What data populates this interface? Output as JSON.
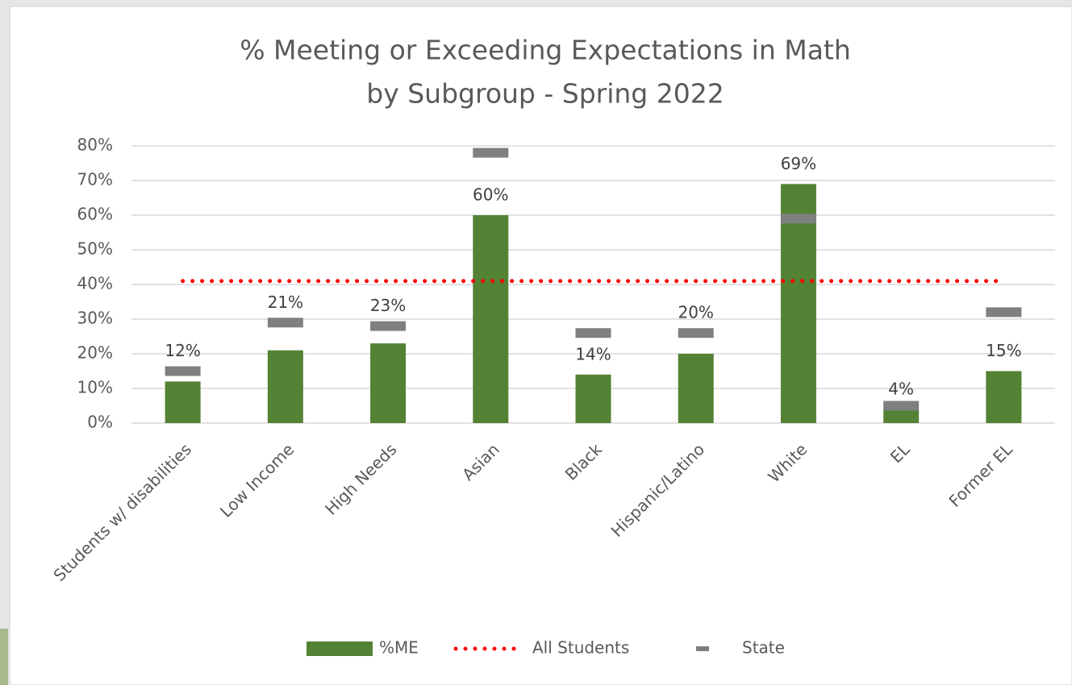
{
  "chart_data": {
    "type": "bar",
    "title": "% Meeting or Exceeding Expectations in Math",
    "subtitle": "by Subgroup - Spring 2022",
    "categories": [
      "Students w/ disabilities",
      "Low Income",
      "High Needs",
      "Asian",
      "Black",
      "Hispanic/Latino",
      "White",
      "EL",
      "Former EL"
    ],
    "series": [
      {
        "name": "%ME",
        "type": "bar",
        "color": "#548235",
        "values": [
          12,
          21,
          23,
          60,
          14,
          20,
          69,
          4,
          15
        ],
        "value_labels": [
          "12%",
          "21%",
          "23%",
          "60%",
          "14%",
          "20%",
          "69%",
          "4%",
          "15%"
        ]
      },
      {
        "name": "All Students",
        "type": "line",
        "color": "#ff0000",
        "values": [
          41,
          41,
          41,
          41,
          41,
          41,
          41,
          41,
          41
        ]
      },
      {
        "name": "State",
        "type": "marker",
        "color": "#7f7f7f",
        "values": [
          15,
          29,
          28,
          78,
          26,
          26,
          59,
          5,
          32
        ]
      }
    ],
    "ylim": [
      0,
      80
    ],
    "yticks": [
      {
        "value": 0,
        "label": "0%"
      },
      {
        "value": 10,
        "label": "10%"
      },
      {
        "value": 20,
        "label": "20%"
      },
      {
        "value": 30,
        "label": "30%"
      },
      {
        "value": 40,
        "label": "40%"
      },
      {
        "value": 50,
        "label": "50%"
      },
      {
        "value": 60,
        "label": "60%"
      },
      {
        "value": 70,
        "label": "70%"
      },
      {
        "value": 80,
        "label": "80%"
      }
    ],
    "grid": true,
    "legend": "bottom"
  }
}
